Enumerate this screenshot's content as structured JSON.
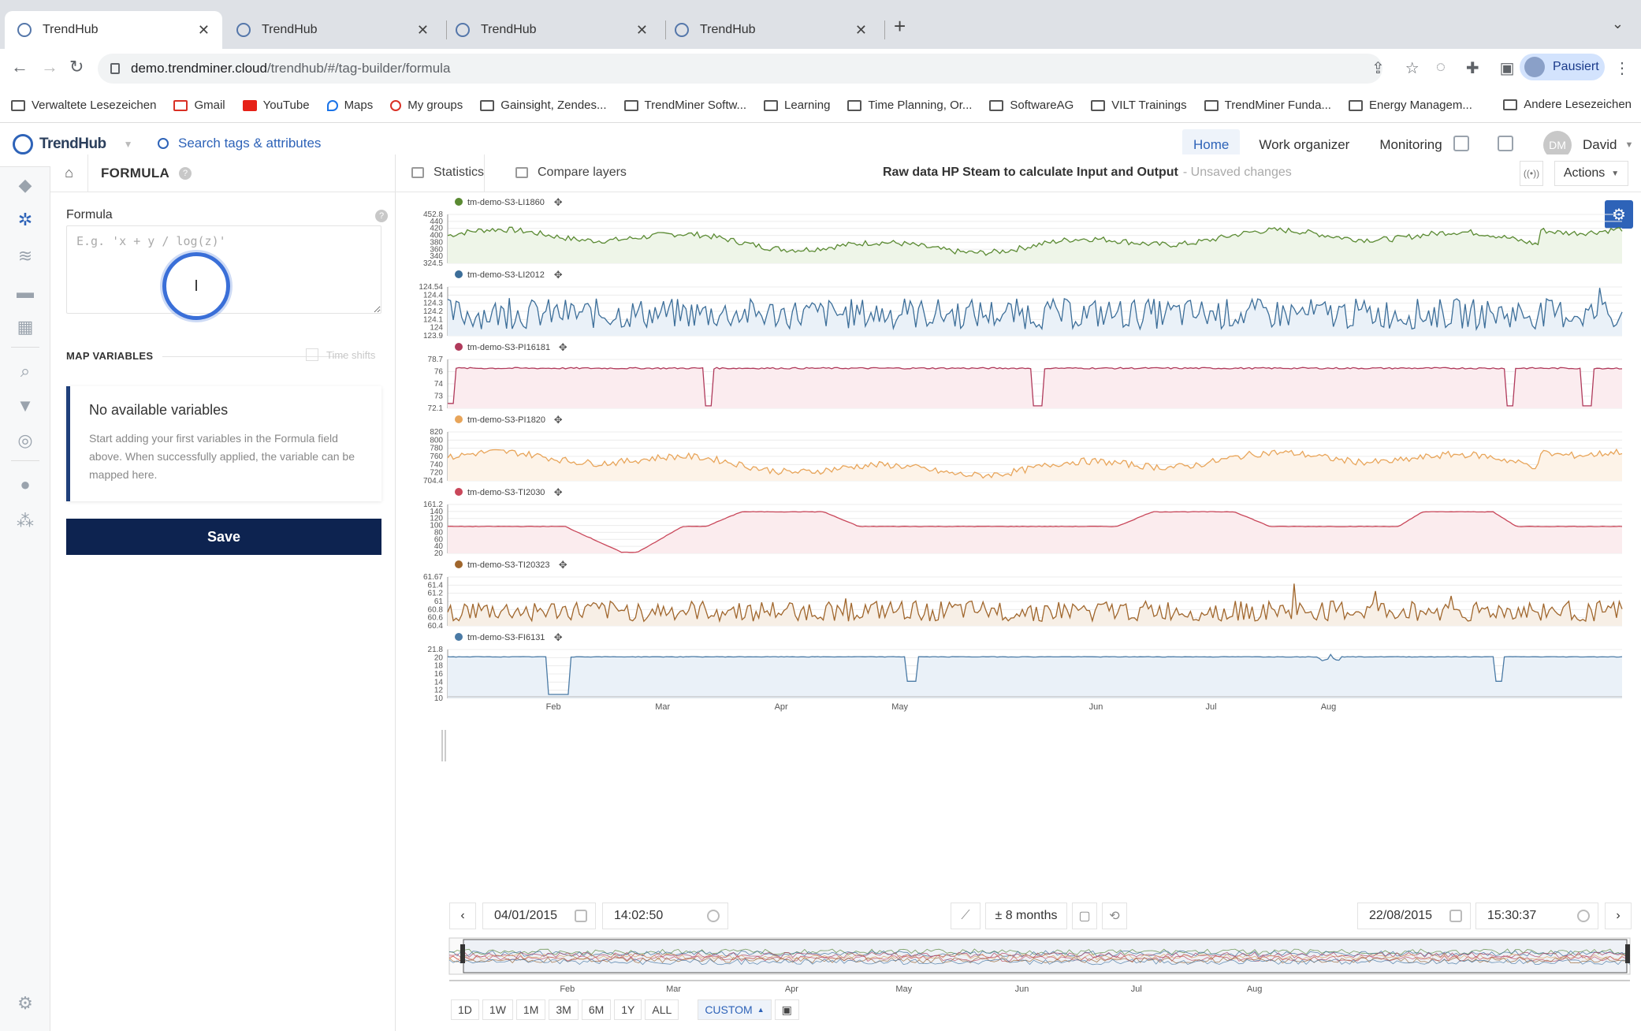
{
  "browser": {
    "tabs": [
      {
        "title": "TrendHub",
        "active": true
      },
      {
        "title": "TrendHub",
        "active": false
      },
      {
        "title": "TrendHub",
        "active": false
      },
      {
        "title": "TrendHub",
        "active": false
      }
    ],
    "url_host": "demo.trendminer.cloud",
    "url_path": "/trendhub/#/tag-builder/formula",
    "profile_label": "Pausiert",
    "bookmarks": [
      {
        "label": "Verwaltete Lesezeichen",
        "icon": "folder-icon"
      },
      {
        "label": "Gmail",
        "icon": "gmail-icon"
      },
      {
        "label": "YouTube",
        "icon": "youtube-icon"
      },
      {
        "label": "Maps",
        "icon": "maps-icon"
      },
      {
        "label": "My groups",
        "icon": "google-icon"
      },
      {
        "label": "Gainsight, Zendes...",
        "icon": "folder-icon"
      },
      {
        "label": "TrendMiner Softw...",
        "icon": "folder-icon"
      },
      {
        "label": "Learning",
        "icon": "folder-icon"
      },
      {
        "label": "Time Planning, Or...",
        "icon": "folder-icon"
      },
      {
        "label": "SoftwareAG",
        "icon": "folder-icon"
      },
      {
        "label": "VILT Trainings",
        "icon": "folder-icon"
      },
      {
        "label": "TrendMiner Funda...",
        "icon": "folder-icon"
      },
      {
        "label": "Energy Managem...",
        "icon": "folder-icon"
      }
    ],
    "bookmarks_other": "Andere Lesezeichen"
  },
  "app": {
    "logo": "TrendHub",
    "search_placeholder": "Search tags & attributes",
    "nav": [
      {
        "label": "Home",
        "active": true
      },
      {
        "label": "Work organizer",
        "active": false
      },
      {
        "label": "Monitoring",
        "active": false
      }
    ],
    "user_initials": "DM",
    "user_name": "David"
  },
  "panel": {
    "title": "FORMULA",
    "formula_label": "Formula",
    "formula_placeholder": "E.g. 'x + y / log(z)'",
    "map_variables": "MAP VARIABLES",
    "time_shifts": "Time shifts",
    "no_vars_title": "No available variables",
    "no_vars_text": "Start adding your first variables in the Formula field above. When successfully applied, the variable can be mapped here.",
    "save_label": "Save"
  },
  "chart_toolbar": {
    "statistics": "Statistics",
    "compare_layers": "Compare layers",
    "view_title": "Raw data HP Steam to calculate Input and Output",
    "unsaved": "- Unsaved changes",
    "actions": "Actions"
  },
  "chart_data": {
    "type": "line",
    "x_axis_labels": [
      "Feb",
      "Mar",
      "Apr",
      "May",
      "Jun",
      "Jul",
      "Aug"
    ],
    "series": [
      {
        "name": "tm-demo-S3-LI1860",
        "color": "#5a8a32",
        "fill": "#eef5e8",
        "ymin": 324.5,
        "ymax": 452.8,
        "ticks": [
          "452.8",
          "440",
          "420",
          "400",
          "380",
          "360",
          "340",
          "324.5"
        ],
        "pattern": "wave",
        "base": 0.45,
        "amp": 0.35,
        "noise": 0.12
      },
      {
        "name": "tm-demo-S3-LI2012",
        "color": "#3c6e99",
        "fill": "#eaf1f8",
        "ymin": 123.9,
        "ymax": 124.54,
        "ticks": [
          "124.54",
          "124.4",
          "124.3",
          "124.2",
          "124.1",
          "124",
          "123.9"
        ],
        "pattern": "noise",
        "base": 0.45,
        "amp": 0.1,
        "noise": 0.45
      },
      {
        "name": "tm-demo-S3-PI16181",
        "color": "#b03a5b",
        "fill": "#fbecef",
        "ymin": 72.1,
        "ymax": 78.7,
        "ticks": [
          "78.7",
          "76",
          "74",
          "73",
          "72.1"
        ],
        "pattern": "dips",
        "base": 0.82,
        "amp": 0.02,
        "noise": 0.03
      },
      {
        "name": "tm-demo-S3-PI1820",
        "color": "#e8a55a",
        "fill": "#fdf3e8",
        "ymin": 704.4,
        "ymax": 820,
        "ticks": [
          "820",
          "800",
          "780",
          "760",
          "740",
          "720",
          "704.4"
        ],
        "pattern": "wave",
        "base": 0.35,
        "amp": 0.35,
        "noise": 0.14
      },
      {
        "name": "tm-demo-S3-TI2030",
        "color": "#c9475a",
        "fill": "#fbecee",
        "ymin": 20,
        "ymax": 161.2,
        "ticks": [
          "161.2",
          "140",
          "120",
          "100",
          "80",
          "60",
          "40",
          "20"
        ],
        "pattern": "steps",
        "base": 0.5,
        "amp": 0.3,
        "noise": 0.01
      },
      {
        "name": "tm-demo-S3-TI20323",
        "color": "#a0662c",
        "fill": "#f7efe6",
        "ymin": 60.4,
        "ymax": 61.67,
        "ticks": [
          "61.67",
          "61.4",
          "61.2",
          "61",
          "60.8",
          "60.6",
          "60.4"
        ],
        "pattern": "noise",
        "base": 0.3,
        "amp": 0.05,
        "noise": 0.3
      },
      {
        "name": "tm-demo-S3-FI6131",
        "color": "#4a7aa5",
        "fill": "#eaf1f8",
        "ymin": 10,
        "ymax": 21.8,
        "ticks": [
          "21.8",
          "20",
          "18",
          "16",
          "14",
          "12",
          "10"
        ],
        "pattern": "flatdips",
        "base": 0.85,
        "amp": 0.01,
        "noise": 0.01
      }
    ]
  },
  "time_controls": {
    "start_date": "04/01/2015",
    "start_time": "14:02:50",
    "span": "± 8 months",
    "end_date": "22/08/2015",
    "end_time": "15:30:37",
    "ranges": [
      "1D",
      "1W",
      "1M",
      "3M",
      "6M",
      "1Y",
      "ALL"
    ],
    "custom": "CUSTOM"
  }
}
